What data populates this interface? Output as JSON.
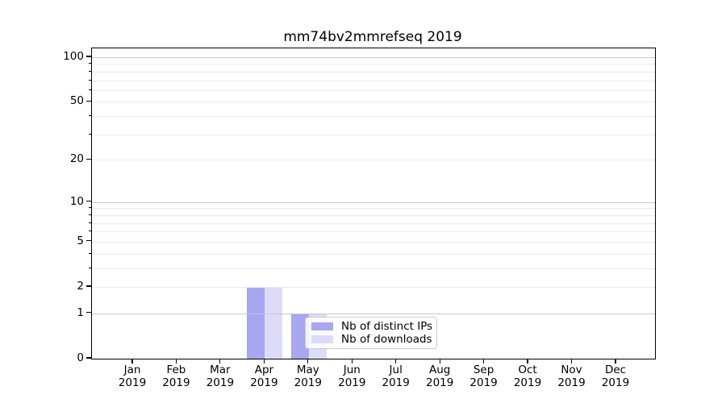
{
  "figure": {
    "background": "#ffffff"
  },
  "chart_data": {
    "type": "bar",
    "title": "mm74bv2mmrefseq 2019",
    "categories": [
      "Jan",
      "Feb",
      "Mar",
      "Apr",
      "May",
      "Jun",
      "Jul",
      "Aug",
      "Sep",
      "Oct",
      "Nov",
      "Dec"
    ],
    "category_year_label": "2019",
    "series": [
      {
        "name": "Nb of distinct IPs",
        "color": "#a6a6f3",
        "values": [
          0,
          0,
          0,
          2,
          1,
          0,
          0,
          0,
          0,
          0,
          0,
          0
        ]
      },
      {
        "name": "Nb of downloads",
        "color": "#dcdcf9",
        "values": [
          0,
          0,
          0,
          2,
          1,
          0,
          0,
          0,
          0,
          0,
          0,
          0
        ]
      }
    ],
    "y_axis": {
      "scale": "log1p",
      "ylim": [
        0,
        100
      ],
      "tick_labels": [
        100,
        50,
        20,
        10,
        5,
        2,
        1,
        0
      ],
      "major_gridlines": [
        1,
        10,
        100
      ],
      "minor_gridlines": [
        2,
        3,
        4,
        5,
        6,
        7,
        8,
        9,
        20,
        30,
        40,
        50,
        60,
        70,
        80,
        90
      ]
    },
    "x_axis": {
      "tick_label_line1": [
        "Jan",
        "Feb",
        "Mar",
        "Apr",
        "May",
        "Jun",
        "Jul",
        "Aug",
        "Sep",
        "Oct",
        "Nov",
        "Dec"
      ],
      "tick_label_line2": [
        "2019",
        "2019",
        "2019",
        "2019",
        "2019",
        "2019",
        "2019",
        "2019",
        "2019",
        "2019",
        "2019",
        "2019"
      ]
    },
    "legend": {
      "position": "lower-left-of-center, inside plot",
      "entries": [
        "Nb of distinct IPs",
        "Nb of downloads"
      ]
    },
    "colors": {
      "bar_distinct_ips": "#a6a6f3",
      "bar_downloads": "#dcdcf9",
      "major_grid": "#c8c8c8",
      "minor_grid": "#eaeaea",
      "spine": "#000000",
      "text": "#000000",
      "legend_border": "#cccccc",
      "legend_background": "rgba(255,255,255,0.85)"
    },
    "grid_drawn_above_bars": true
  }
}
